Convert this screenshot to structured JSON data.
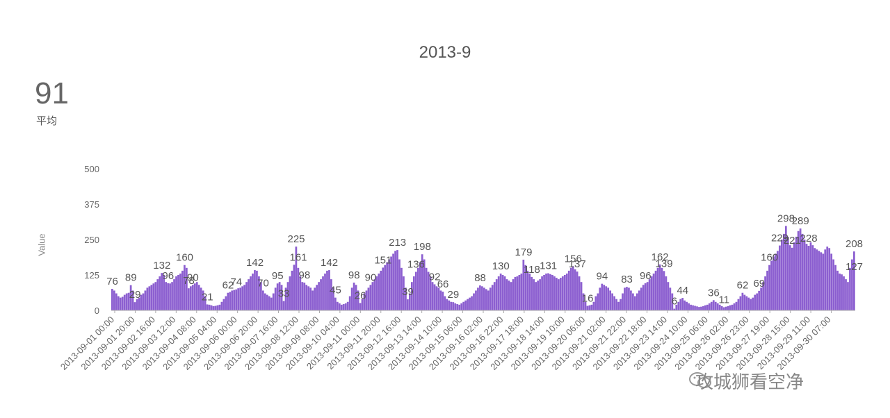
{
  "header": {
    "title": "2013-9"
  },
  "summary": {
    "average_value": "91",
    "average_label": "平均"
  },
  "watermark": {
    "text": "攻城狮看空净",
    "icon": "wechat-icon"
  },
  "colors": {
    "bar": "#8c5fd0",
    "axis": "#cccccc",
    "text": "#555555"
  },
  "chart_data": {
    "type": "bar",
    "title": "2013-9",
    "xlabel": "",
    "ylabel": "Value",
    "ylim": [
      0,
      500
    ],
    "y_ticks": [
      0,
      125,
      250,
      375,
      500
    ],
    "grid": false,
    "x_tick_labels": [
      "2013-09-01 00:00",
      "2013-09-01 20:00",
      "2013-09-02 16:00",
      "2013-09-03 12:00",
      "2013-09-04 08:00",
      "2013-09-05 04:00",
      "2013-09-06 00:00",
      "2013-09-06 20:00",
      "2013-09-07 16:00",
      "2013-09-08 12:00",
      "2013-09-09 08:00",
      "2013-09-10 04:00",
      "2013-09-11 00:00",
      "2013-09-11 20:00",
      "2013-09-12 16:00",
      "2013-09-13 14:00",
      "2013-09-14 10:00",
      "2013-09-15 06:00",
      "2013-09-16 02:00",
      "2013-09-16 22:00",
      "2013-09-17 18:00",
      "2013-09-18 14:00",
      "2013-09-19 10:00",
      "2013-09-20 06:00",
      "2013-09-21 02:00",
      "2013-09-21 22:00",
      "2013-09-22 18:00",
      "2013-09-23 14:00",
      "2013-09-24 10:00",
      "2013-09-25 06:00",
      "2013-09-26 02:00",
      "2013-09-26 23:00",
      "2013-09-27 19:00",
      "2013-09-28 15:00",
      "2013-09-29 11:00",
      "2013-09-30 07:00"
    ],
    "series": [
      {
        "values": [
          76,
          70,
          60,
          50,
          45,
          48,
          55,
          60,
          62,
          89,
          70,
          29,
          40,
          45,
          55,
          60,
          70,
          80,
          85,
          90,
          95,
          100,
          110,
          120,
          132,
          125,
          100,
          96,
          95,
          100,
          110,
          120,
          125,
          130,
          140,
          160,
          150,
          78,
          85,
          90,
          95,
          100,
          90,
          80,
          70,
          50,
          21,
          20,
          18,
          15,
          16,
          18,
          20,
          30,
          40,
          50,
          62,
          65,
          70,
          72,
          74,
          78,
          80,
          85,
          90,
          100,
          110,
          120,
          130,
          142,
          140,
          120,
          100,
          70,
          60,
          55,
          50,
          45,
          60,
          80,
          95,
          100,
          90,
          33,
          80,
          100,
          120,
          140,
          161,
          225,
          150,
          120,
          100,
          98,
          90,
          85,
          80,
          70,
          80,
          90,
          100,
          110,
          120,
          130,
          140,
          142,
          110,
          80,
          45,
          30,
          25,
          20,
          22,
          25,
          30,
          50,
          80,
          98,
          90,
          70,
          26,
          40,
          60,
          70,
          80,
          90,
          100,
          110,
          120,
          130,
          140,
          151,
          160,
          170,
          180,
          190,
          200,
          210,
          213,
          180,
          150,
          120,
          80,
          39,
          60,
          100,
          120,
          136,
          150,
          170,
          198,
          180,
          150,
          136,
          120,
          100,
          92,
          85,
          80,
          70,
          66,
          50,
          40,
          35,
          30,
          29,
          25,
          22,
          20,
          25,
          30,
          35,
          40,
          45,
          50,
          60,
          70,
          80,
          88,
          85,
          80,
          75,
          70,
          80,
          90,
          100,
          110,
          120,
          130,
          125,
          120,
          110,
          105,
          100,
          110,
          118,
          120,
          125,
          130,
          179,
          160,
          140,
          130,
          118,
          110,
          100,
          105,
          110,
          120,
          125,
          130,
          131,
          128,
          125,
          120,
          115,
          110,
          115,
          120,
          125,
          130,
          140,
          150,
          156,
          145,
          137,
          120,
          100,
          60,
          30,
          16,
          18,
          20,
          30,
          50,
          60,
          80,
          94,
          90,
          85,
          80,
          70,
          60,
          50,
          40,
          30,
          40,
          60,
          80,
          83,
          80,
          70,
          60,
          50,
          60,
          70,
          80,
          90,
          96,
          100,
          110,
          120,
          130,
          140,
          150,
          162,
          150,
          139,
          120,
          100,
          80,
          60,
          6,
          20,
          30,
          40,
          44,
          35,
          30,
          25,
          20,
          18,
          16,
          14,
          12,
          13,
          15,
          18,
          20,
          25,
          30,
          36,
          30,
          25,
          20,
          15,
          11,
          13,
          15,
          18,
          20,
          25,
          30,
          40,
          50,
          62,
          55,
          50,
          45,
          40,
          45,
          55,
          60,
          69,
          80,
          100,
          120,
          140,
          160,
          175,
          190,
          200,
          210,
          229,
          250,
          270,
          298,
          260,
          230,
          221,
          240,
          260,
          280,
          289,
          270,
          250,
          235,
          228,
          240,
          230,
          220,
          215,
          210,
          205,
          200,
          215,
          225,
          220,
          200,
          180,
          160,
          140,
          130,
          127,
          120,
          110,
          100,
          150,
          180,
          208
        ]
      }
    ],
    "annotations": [
      "76",
      "89",
      "29",
      "132",
      "96",
      "160",
      "78",
      "90",
      "21",
      "62",
      "74",
      "142",
      "70",
      "95",
      "33",
      "225",
      "161",
      "98",
      "142",
      "45",
      "98",
      "26",
      "90",
      "151",
      "213",
      "39",
      "136",
      "198",
      "92",
      "66",
      "29",
      "88",
      "130",
      "179",
      "118",
      "131",
      "156",
      "137",
      "16",
      "94",
      "83",
      "96",
      "162",
      "139",
      "6",
      "44",
      "36",
      "11",
      "62",
      "69",
      "160",
      "229",
      "298",
      "221",
      "289",
      "228",
      "208",
      "127"
    ]
  }
}
